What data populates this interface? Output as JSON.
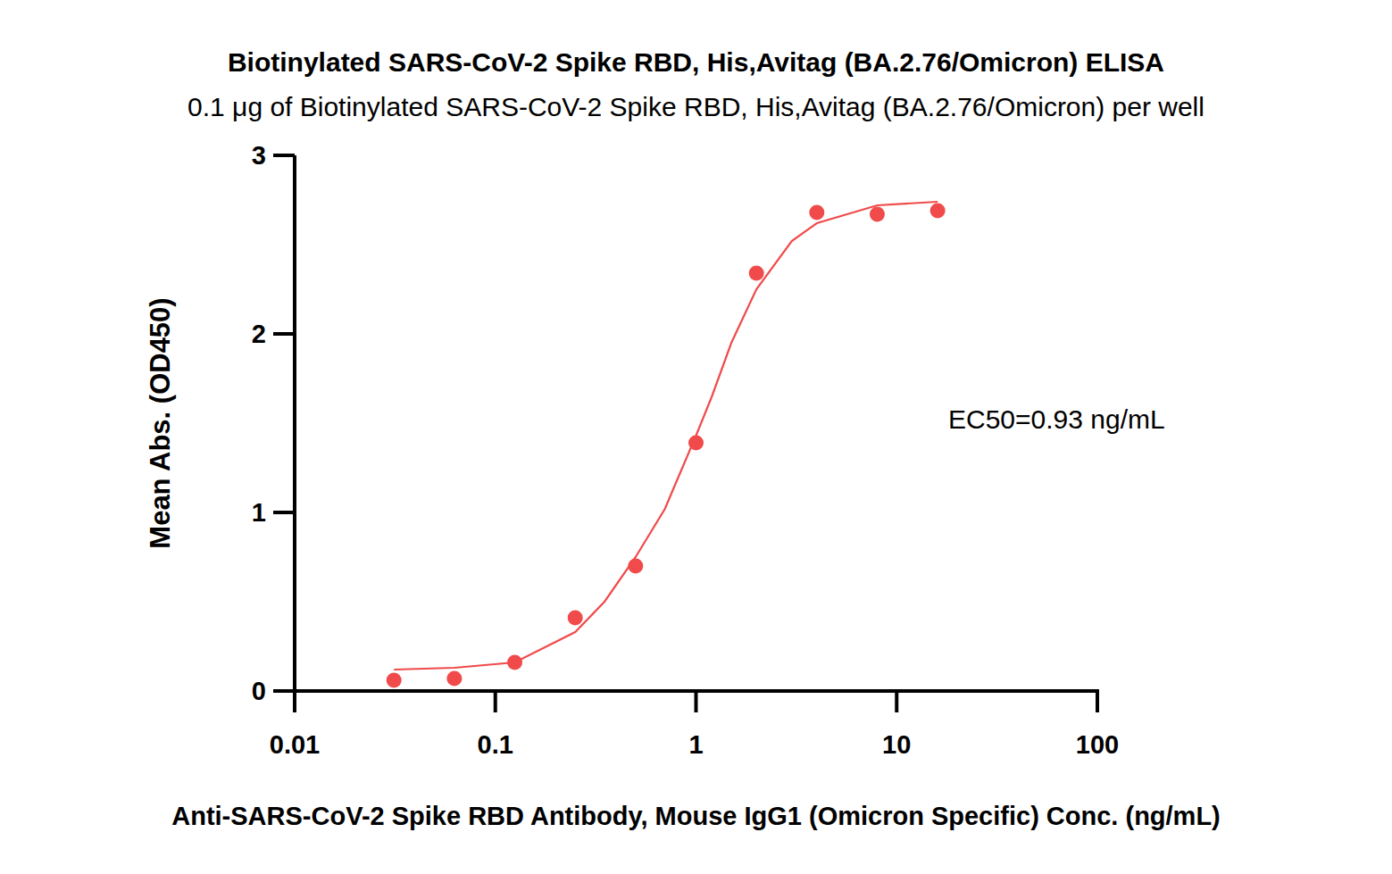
{
  "chart_data": {
    "type": "scatter",
    "title": "Biotinylated SARS-CoV-2 Spike RBD, His,Avitag (BA.2.76/Omicron) ELISA",
    "subtitle": "0.1 μg of Biotinylated SARS-CoV-2 Spike RBD, His,Avitag (BA.2.76/Omicron) per well",
    "x_label": "Anti-SARS-CoV-2 Spike RBD Antibody, Mouse IgG1 (Omicron Specific) Conc. (ng/mL)",
    "y_label": "Mean Abs. (OD450)",
    "annotation": "EC50=0.93 ng/mL",
    "log": "x",
    "grid": false,
    "xlim": [
      0.01,
      100
    ],
    "xticks": [
      0.01,
      0.1,
      1,
      10,
      100
    ],
    "ylim": [
      0,
      3
    ],
    "yticks": [
      0,
      1,
      2,
      3
    ],
    "series": [
      {
        "type": "scatter",
        "marker": "circle",
        "color": "#f04a4a",
        "x": [
          0.03125,
          0.0625,
          0.125,
          0.25,
          0.5,
          1,
          2,
          4,
          8,
          16
        ],
        "values": [
          0.06,
          0.07,
          0.16,
          0.41,
          0.7,
          1.39,
          2.34,
          2.68,
          2.67,
          2.69
        ]
      },
      {
        "type": "line",
        "line_style": "solid",
        "color": "#f04a4a",
        "x": [
          0.03125,
          0.0625,
          0.125,
          0.25,
          0.35,
          0.5,
          0.7,
          0.75,
          1,
          1.2,
          1.5,
          2,
          3,
          4,
          8,
          16
        ],
        "values": [
          0.12,
          0.13,
          0.16,
          0.33,
          0.5,
          0.75,
          1.02,
          1.1,
          1.43,
          1.65,
          1.95,
          2.25,
          2.52,
          2.62,
          2.72,
          2.74
        ]
      }
    ]
  }
}
